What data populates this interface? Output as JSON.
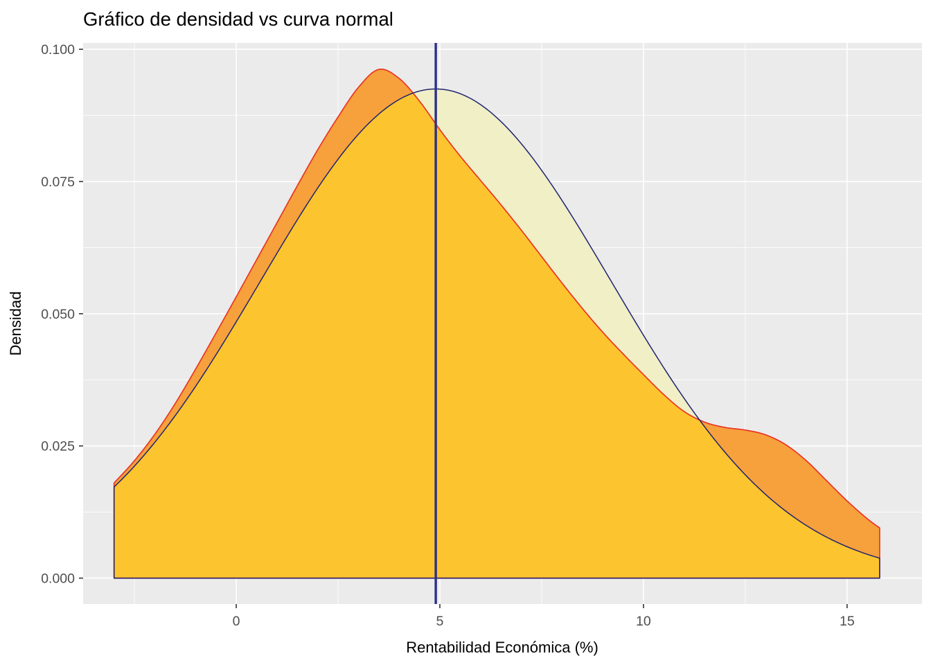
{
  "chart_data": {
    "type": "area",
    "title": "Gráfico de densidad vs curva normal",
    "xlabel": "Rentabilidad Económica (%)",
    "ylabel": "Densidad",
    "xlim": [
      -3.76,
      16.84
    ],
    "ylim": [
      -0.0049,
      0.1012
    ],
    "x_ticks": [
      0,
      5,
      10,
      15
    ],
    "x_tick_labels": [
      "0",
      "5",
      "10",
      "15"
    ],
    "x_minor": [
      -2.5,
      2.5,
      7.5,
      12.5
    ],
    "y_ticks": [
      0,
      0.025,
      0.05,
      0.075,
      0.1
    ],
    "y_tick_labels": [
      "0.000",
      "0.025",
      "0.050",
      "0.075",
      "0.100"
    ],
    "y_minor": [
      0.0125,
      0.0375,
      0.0625,
      0.0875
    ],
    "grid": true,
    "legend": "none",
    "vline_x": 4.9,
    "series": [
      {
        "name": "densidad",
        "kind": "kernel-density",
        "points": [
          [
            -3.0,
            0.018
          ],
          [
            -2.5,
            0.0222
          ],
          [
            -2.0,
            0.0272
          ],
          [
            -1.5,
            0.033
          ],
          [
            -1.0,
            0.0395
          ],
          [
            -0.5,
            0.0463
          ],
          [
            0.0,
            0.0532
          ],
          [
            0.5,
            0.0602
          ],
          [
            1.0,
            0.0672
          ],
          [
            1.5,
            0.0742
          ],
          [
            2.0,
            0.081
          ],
          [
            2.5,
            0.0872
          ],
          [
            3.0,
            0.0928
          ],
          [
            3.5,
            0.0962
          ],
          [
            4.0,
            0.0945
          ],
          [
            4.5,
            0.0902
          ],
          [
            5.0,
            0.0848
          ],
          [
            5.5,
            0.0798
          ],
          [
            6.0,
            0.0752
          ],
          [
            6.5,
            0.0706
          ],
          [
            7.0,
            0.0658
          ],
          [
            7.5,
            0.0608
          ],
          [
            8.0,
            0.0558
          ],
          [
            8.5,
            0.051
          ],
          [
            9.0,
            0.0465
          ],
          [
            9.5,
            0.0424
          ],
          [
            10.0,
            0.0385
          ],
          [
            10.5,
            0.0347
          ],
          [
            11.0,
            0.0315
          ],
          [
            11.5,
            0.0295
          ],
          [
            12.0,
            0.0285
          ],
          [
            12.5,
            0.028
          ],
          [
            13.0,
            0.0271
          ],
          [
            13.5,
            0.0252
          ],
          [
            14.0,
            0.0222
          ],
          [
            14.5,
            0.0184
          ],
          [
            15.0,
            0.0146
          ],
          [
            15.5,
            0.0112
          ],
          [
            15.8,
            0.0095
          ]
        ]
      },
      {
        "name": "curva normal",
        "kind": "normal",
        "mean": 4.9,
        "sd": 4.31,
        "peak": 0.0925,
        "x_range": [
          -3.0,
          15.8
        ]
      }
    ],
    "colors": {
      "panel_bg": "#EBEBEB",
      "grid": "#FFFFFF",
      "density_fill_overlap": "#FCC42E",
      "density_fill_excess": "#F6A13C",
      "normal_fill": "#F0EFC6",
      "density_stroke": "#EA3423",
      "normal_stroke": "#1F2370",
      "vline": "#2B3089",
      "tick_text": "#4D4D4D",
      "tick_mark": "#333333"
    }
  }
}
